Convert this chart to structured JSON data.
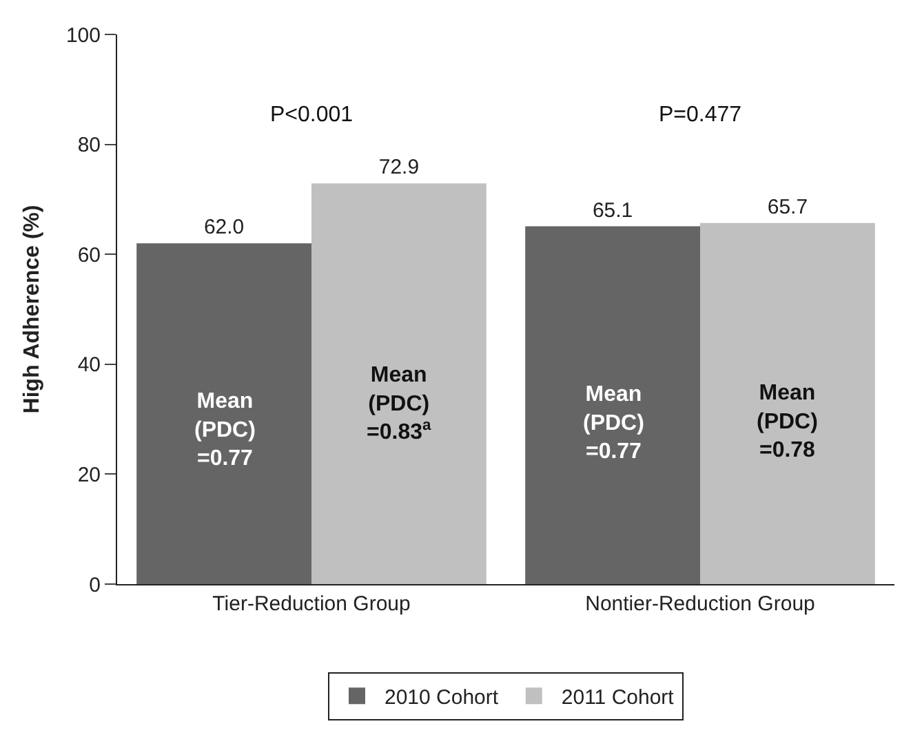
{
  "chart_data": {
    "type": "bar",
    "ylabel": "High Adherence (%)",
    "categories": [
      "Tier-Reduction Group",
      "Nontier-Reduction Group"
    ],
    "series": [
      {
        "name": "2010 Cohort",
        "color": "#656565",
        "values": [
          62.0,
          65.1
        ],
        "value_labels": [
          "62.0",
          "65.1"
        ]
      },
      {
        "name": "2011 Cohort",
        "color": "#c0c0c0",
        "values": [
          72.9,
          65.7
        ],
        "value_labels": [
          "72.9",
          "65.7"
        ]
      }
    ],
    "annotations": [
      "P<0.001",
      "P=0.477",
      "Mean\n(PDC)\n=0.77",
      "Mean\n(PDC)\n=0.83$^{a}$",
      "Mean\n(PDC)\n=0.77",
      "Mean\n(PDC)\n=0.78"
    ],
    "ylim": [
      0,
      100
    ],
    "yticks": [
      0,
      20,
      40,
      60,
      80,
      100
    ],
    "legend": "bottom"
  }
}
